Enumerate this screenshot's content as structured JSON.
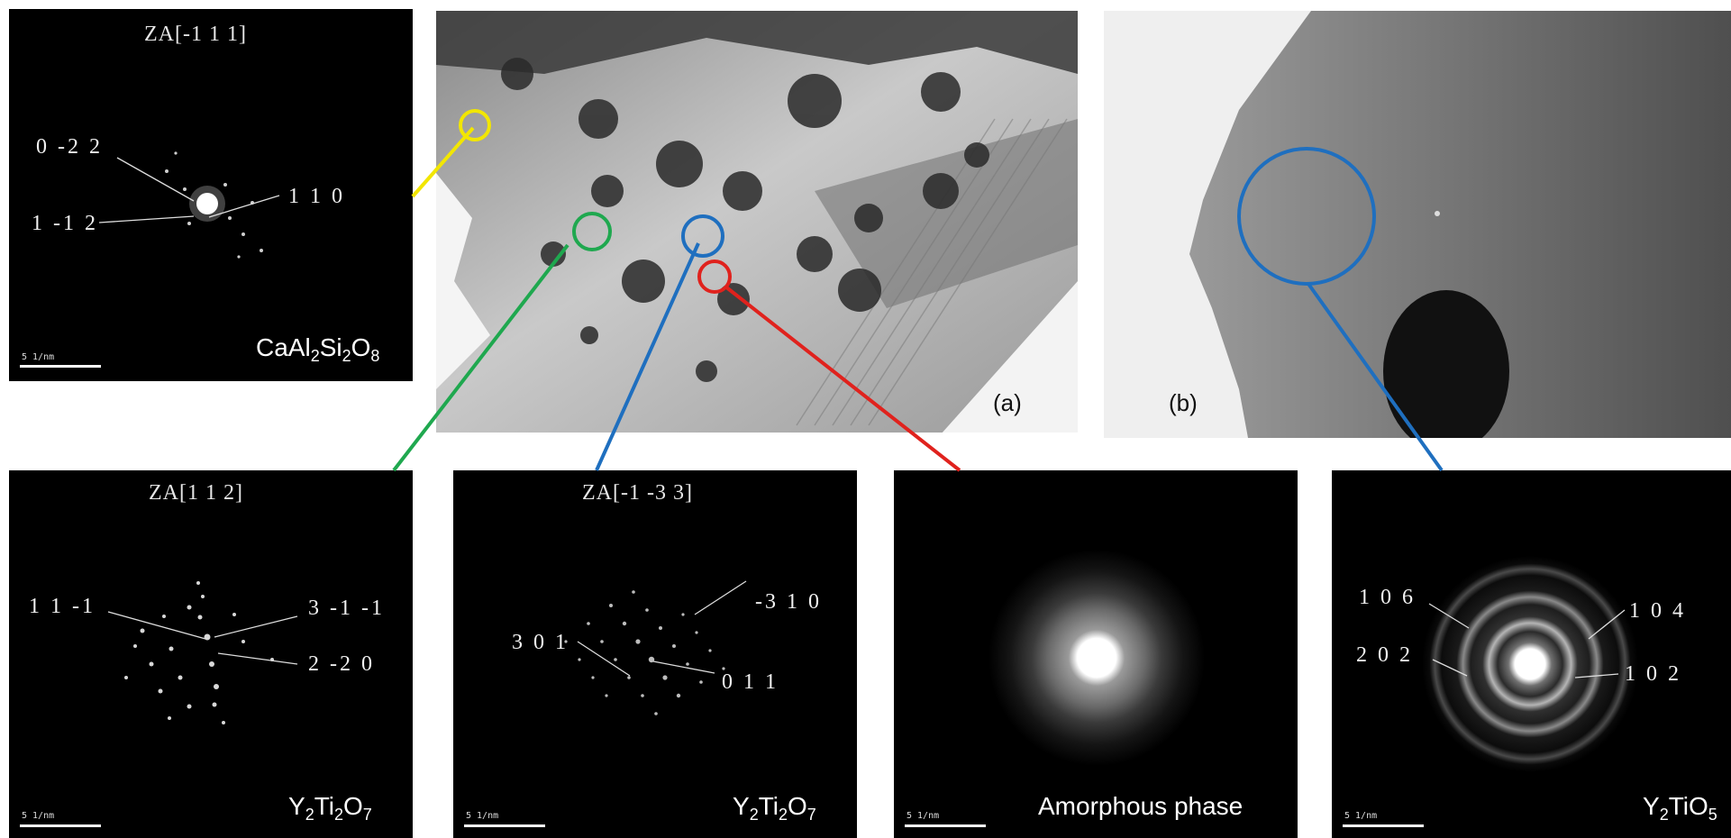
{
  "panels": {
    "cas": {
      "zone_axis": "ZA[-1 1 1]",
      "indices": [
        "0 -2 2",
        "1 -1 2",
        "1 1 0"
      ],
      "scale": "5 1/nm",
      "phase": {
        "pre": "CaAl",
        "s1": "2",
        "mid": "Si",
        "s2": "2",
        "mid2": "O",
        "s3": "8"
      }
    },
    "yto1": {
      "zone_axis": "ZA[1 1 2]",
      "indices": [
        "1 1 -1",
        "3 -1 -1",
        "2 -2 0"
      ],
      "scale": "5 1/nm",
      "phase": {
        "pre": "Y",
        "s1": "2",
        "mid": "Ti",
        "s2": "2",
        "mid2": "O",
        "s3": "7"
      }
    },
    "yto2": {
      "zone_axis": "ZA[-1 -3 3]",
      "indices": [
        "-3 1 0",
        "3 0 1",
        "0 1 1"
      ],
      "scale": "5 1/nm",
      "phase": {
        "pre": "Y",
        "s1": "2",
        "mid": "Ti",
        "s2": "2",
        "mid2": "O",
        "s3": "7"
      }
    },
    "amorphous": {
      "scale": "5 1/nm",
      "phase_text": "Amorphous phase"
    },
    "yt5": {
      "indices": [
        "1 0 6",
        "1 0 4",
        "2 0 2",
        "1 0 2"
      ],
      "scale": "5 1/nm",
      "phase": {
        "pre": "Y",
        "s1": "2",
        "mid": "TiO",
        "s2": "5"
      }
    }
  },
  "micrographs": {
    "a_label": "(a)",
    "b_label": "(b)"
  },
  "colors": {
    "yellow": "#f2e600",
    "green": "#1fa84f",
    "blue": "#1f6fbf",
    "red": "#e0221d"
  }
}
